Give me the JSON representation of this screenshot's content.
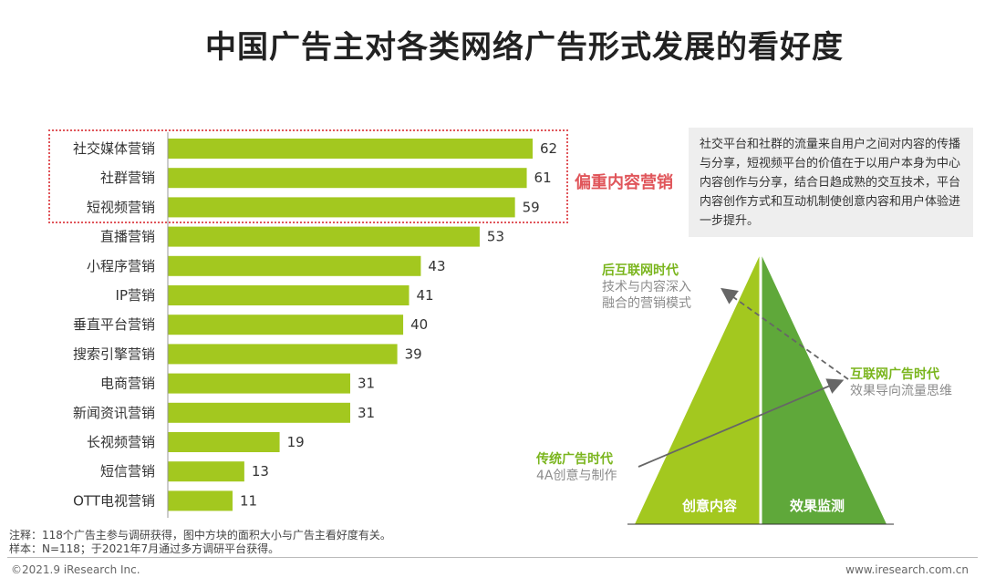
{
  "title": "中国广告主对各类网络广告形式发展的看好度",
  "chart_data": {
    "type": "bar",
    "orientation": "horizontal",
    "categories": [
      "社交媒体营销",
      "社群营销",
      "短视频营销",
      "直播营销",
      "小程序营销",
      "IP营销",
      "垂直平台营销",
      "搜索引擎营销",
      "电商营销",
      "新闻资讯营销",
      "长视频营销",
      "短信营销",
      "OTT电视营销"
    ],
    "values": [
      62,
      61,
      59,
      53,
      43,
      41,
      40,
      39,
      31,
      31,
      19,
      13,
      11
    ],
    "bar_color": "#a3c81f",
    "xlim": [
      0,
      65
    ]
  },
  "highlight": {
    "label": "偏重内容营销",
    "color": "#e0555a"
  },
  "description": "社交平台和社群的流量来自用户之间对内容的传播与分享，短视频平台的价值在于以用户本身为中心内容创作与分享，结合日趋成熟的交互技术，平台内容创作方式和互动机制使创意内容和用户体验进一步提升。",
  "pyramid": {
    "left_label": "创意内容",
    "right_label": "效果监测",
    "left_color": "#a3c81f",
    "right_color": "#5fa83a",
    "eras": [
      {
        "title": "后互联网时代",
        "desc_line1": "技术与内容深入",
        "desc_line2": "融合的营销模式"
      },
      {
        "title": "互联网广告时代",
        "desc_line1": "效果导向流量思维"
      },
      {
        "title": "传统广告时代",
        "desc_line1": "4A创意与制作"
      }
    ]
  },
  "footnote": {
    "line1": "注释：118个广告主参与调研获得，图中方块的面积大小与广告主看好度有关。",
    "line2": "样本：N=118；于2021年7月通过多方调研平台获得。"
  },
  "footer": {
    "left": "©2021.9 iResearch Inc.",
    "right": "www.iresearch.com.cn"
  }
}
